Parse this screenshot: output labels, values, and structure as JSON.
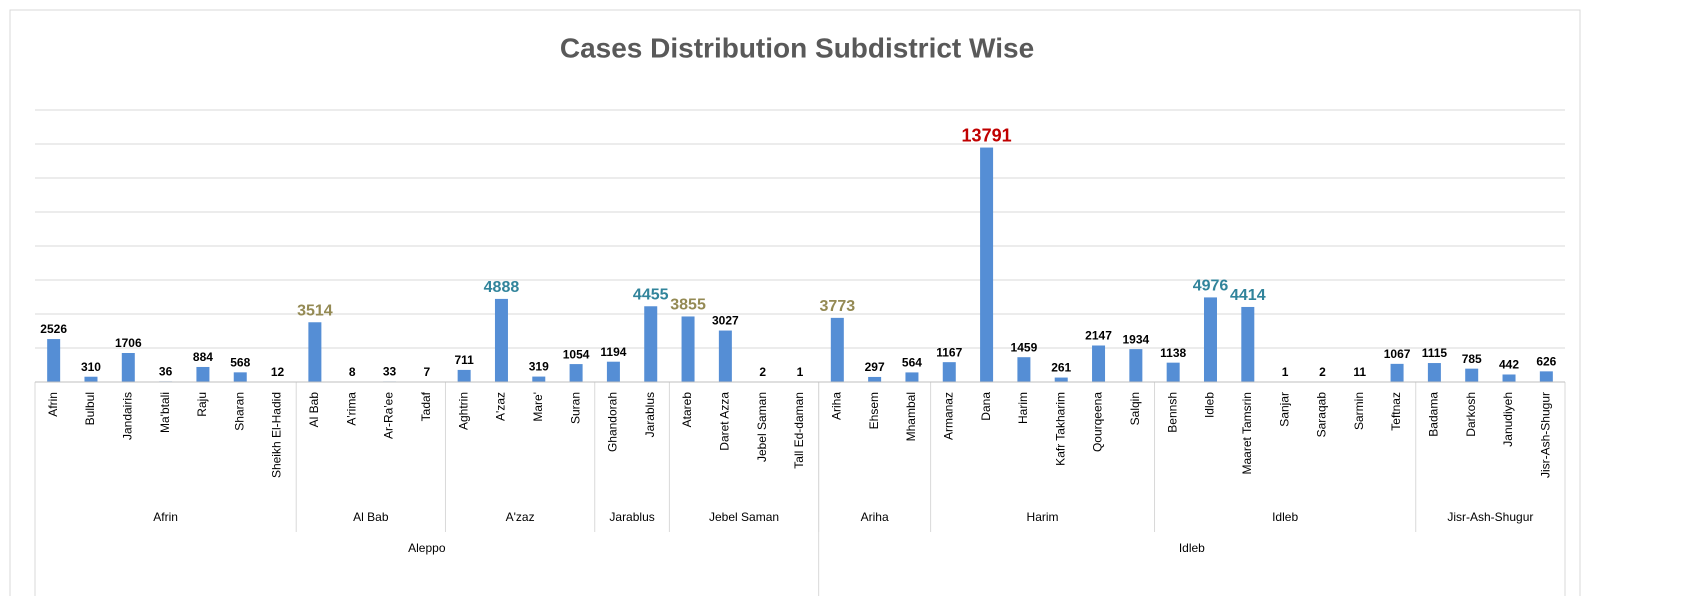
{
  "chart_data": {
    "type": "bar",
    "title": "Cases Distribution Subdistrict Wise",
    "color": "#558ed5",
    "ylim": [
      0,
      16000
    ],
    "yticks": [
      0,
      2000,
      4000,
      6000,
      8000,
      10000,
      12000,
      14000,
      16000
    ],
    "grid": true,
    "governorates": [
      {
        "name": "Aleppo",
        "districts": [
          {
            "name": "Afrin",
            "categories": [
              "Afrin",
              "Bulbul",
              "Jandairis",
              "Ma'btali",
              "Raju",
              "Sharan",
              "Sheikh El-Hadid"
            ],
            "values": [
              2526,
              310,
              1706,
              36,
              884,
              568,
              12
            ],
            "label_colors": [
              "#000000",
              "#000000",
              "#000000",
              "#000000",
              "#000000",
              "#000000",
              "#000000"
            ]
          },
          {
            "name": "Al Bab",
            "categories": [
              "Al Bab",
              "A'rima",
              "Ar-Ra'ee",
              "Tadaf"
            ],
            "values": [
              3514,
              8,
              33,
              7
            ],
            "label_colors": [
              "#948a54",
              "#000000",
              "#000000",
              "#000000"
            ]
          },
          {
            "name": "A'zaz",
            "categories": [
              "Aghtrin",
              "A'zaz",
              "Mare'",
              "Suran"
            ],
            "values": [
              711,
              4888,
              319,
              1054
            ],
            "label_colors": [
              "#000000",
              "#31849b",
              "#000000",
              "#000000"
            ]
          },
          {
            "name": "Jarablus",
            "categories": [
              "Ghandorah",
              "Jarablus"
            ],
            "values": [
              1194,
              4455
            ],
            "label_colors": [
              "#000000",
              "#31849b"
            ]
          },
          {
            "name": "Jebel Saman",
            "categories": [
              "Atareb",
              "Daret Azza",
              "Jebel Saman",
              "Tall Ed-daman"
            ],
            "values": [
              3855,
              3027,
              2,
              1
            ],
            "label_colors": [
              "#948a54",
              "#000000",
              "#000000",
              "#000000"
            ]
          }
        ]
      },
      {
        "name": "Idleb",
        "districts": [
          {
            "name": "Ariha",
            "categories": [
              "Ariha",
              "Ehsem",
              "Mhambal"
            ],
            "values": [
              3773,
              297,
              564
            ],
            "label_colors": [
              "#948a54",
              "#000000",
              "#000000"
            ]
          },
          {
            "name": "Harim",
            "categories": [
              "Armanaz",
              "Dana",
              "Harim",
              "Kafr Takharim",
              "Qourqeena",
              "Salqin"
            ],
            "values": [
              1167,
              13791,
              1459,
              261,
              2147,
              1934
            ],
            "label_colors": [
              "#000000",
              "#c00000",
              "#000000",
              "#000000",
              "#000000",
              "#000000"
            ]
          },
          {
            "name": "Idleb",
            "categories": [
              "Bennsh",
              "Idleb",
              "Maaret Tamsrin",
              "Sanjar",
              "Saraqab",
              "Sarmin",
              "Teftnaz"
            ],
            "values": [
              1138,
              4976,
              4414,
              1,
              2,
              11,
              1067
            ],
            "label_colors": [
              "#000000",
              "#31849b",
              "#31849b",
              "#000000",
              "#000000",
              "#000000",
              "#000000"
            ]
          },
          {
            "name": "Jisr-Ash-Shugur",
            "categories": [
              "Badama",
              "Darkosh",
              "Janudiyeh",
              "Jisr-Ash-Shugur"
            ],
            "values": [
              1115,
              785,
              442,
              626
            ],
            "label_colors": [
              "#000000",
              "#000000",
              "#000000",
              "#000000"
            ]
          }
        ]
      }
    ]
  }
}
